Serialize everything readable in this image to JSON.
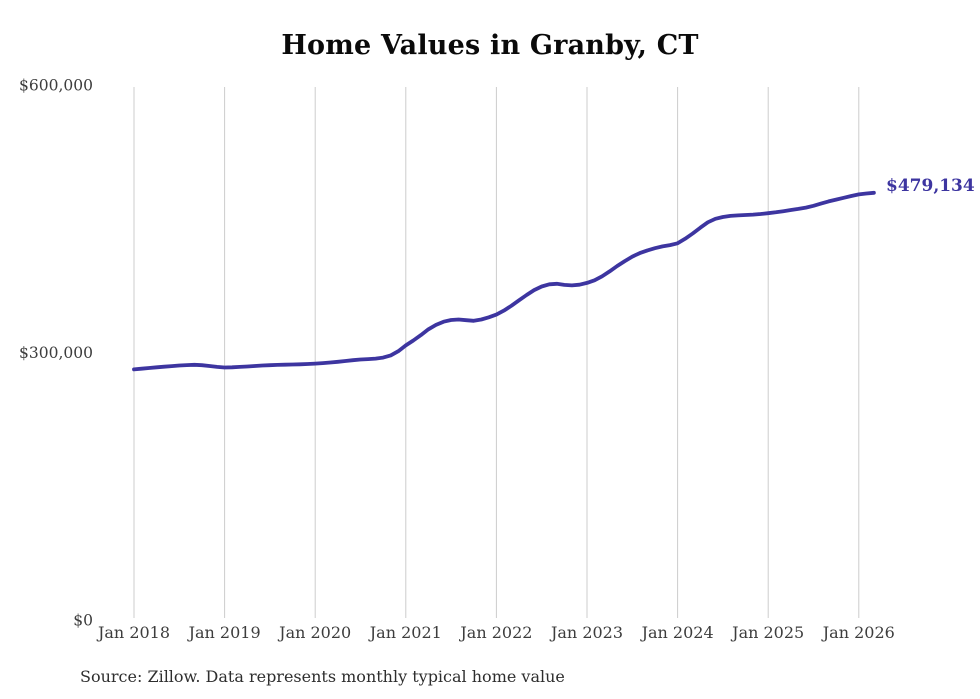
{
  "page": {
    "title": "Home Values in Granby, CT",
    "source_note": "Source: Zillow. Data represents monthly typical home value",
    "end_value_label": "$479,134"
  },
  "colors": {
    "line": "#3d35a0",
    "grid": "#cccccc",
    "tick_text": "#3d3d3d",
    "title_text": "#0a0a0a",
    "annotation_text": "#3d35a0"
  },
  "chart_data": {
    "type": "line",
    "title": "Home Values in Granby, CT",
    "xlabel": "",
    "ylabel": "",
    "ylim": [
      0,
      600000
    ],
    "grid": "vertical-only",
    "legend": "none",
    "y_ticks": [
      {
        "value": 0,
        "label": "$0"
      },
      {
        "value": 300000,
        "label": "$300,000"
      },
      {
        "value": 600000,
        "label": "$600,000"
      }
    ],
    "x_tick_labels": [
      "Jan 2018",
      "Jan 2019",
      "Jan 2020",
      "Jan 2021",
      "Jan 2022",
      "Jan 2023",
      "Jan 2024",
      "Jan 2025",
      "Jan 2026"
    ],
    "series": [
      {
        "name": "Typical home value (monthly)",
        "final_value": 479134,
        "final_value_label": "$479,134",
        "months": [
          "2018-01",
          "2018-02",
          "2018-03",
          "2018-04",
          "2018-05",
          "2018-06",
          "2018-07",
          "2018-08",
          "2018-09",
          "2018-10",
          "2018-11",
          "2018-12",
          "2019-01",
          "2019-02",
          "2019-03",
          "2019-04",
          "2019-05",
          "2019-06",
          "2019-07",
          "2019-08",
          "2019-09",
          "2019-10",
          "2019-11",
          "2019-12",
          "2020-01",
          "2020-02",
          "2020-03",
          "2020-04",
          "2020-05",
          "2020-06",
          "2020-07",
          "2020-08",
          "2020-09",
          "2020-10",
          "2020-11",
          "2020-12",
          "2021-01",
          "2021-02",
          "2021-03",
          "2021-04",
          "2021-05",
          "2021-06",
          "2021-07",
          "2021-08",
          "2021-09",
          "2021-10",
          "2021-11",
          "2021-12",
          "2022-01",
          "2022-02",
          "2022-03",
          "2022-04",
          "2022-05",
          "2022-06",
          "2022-07",
          "2022-08",
          "2022-09",
          "2022-10",
          "2022-11",
          "2022-12",
          "2023-01",
          "2023-02",
          "2023-03",
          "2023-04",
          "2023-05",
          "2023-06",
          "2023-07",
          "2023-08",
          "2023-09",
          "2023-10",
          "2023-11",
          "2023-12",
          "2024-01",
          "2024-02",
          "2024-03",
          "2024-04",
          "2024-05",
          "2024-06",
          "2024-07",
          "2024-08",
          "2024-09",
          "2024-10",
          "2024-11",
          "2024-12",
          "2025-01",
          "2025-02",
          "2025-03",
          "2025-04",
          "2025-05",
          "2025-06",
          "2025-07",
          "2025-08",
          "2025-09",
          "2025-10",
          "2025-11",
          "2025-12",
          "2026-01",
          "2026-02",
          "2026-03"
        ],
        "values": [
          281000,
          281800,
          282600,
          283400,
          284100,
          284800,
          285400,
          285900,
          286200,
          285800,
          284900,
          283900,
          283200,
          283400,
          283800,
          284300,
          284900,
          285400,
          285800,
          286100,
          286300,
          286500,
          286800,
          287100,
          287500,
          288100,
          288800,
          289600,
          290500,
          291400,
          292100,
          292600,
          293200,
          294300,
          296700,
          301500,
          308000,
          313500,
          319500,
          326000,
          331000,
          334500,
          336500,
          337000,
          336200,
          335600,
          337000,
          339500,
          342500,
          347000,
          352500,
          358500,
          364500,
          370000,
          374000,
          376500,
          377000,
          375800,
          375200,
          376000,
          378000,
          381000,
          385500,
          391000,
          397000,
          402500,
          407500,
          411500,
          414500,
          417000,
          419000,
          420500,
          422500,
          427500,
          433500,
          440000,
          446000,
          450000,
          452000,
          453200,
          453800,
          454200,
          454700,
          455300,
          456200,
          457200,
          458500,
          459800,
          461000,
          462500,
          464500,
          467000,
          469500,
          471500,
          473500,
          475500,
          477300,
          478300,
          479134
        ]
      }
    ]
  }
}
